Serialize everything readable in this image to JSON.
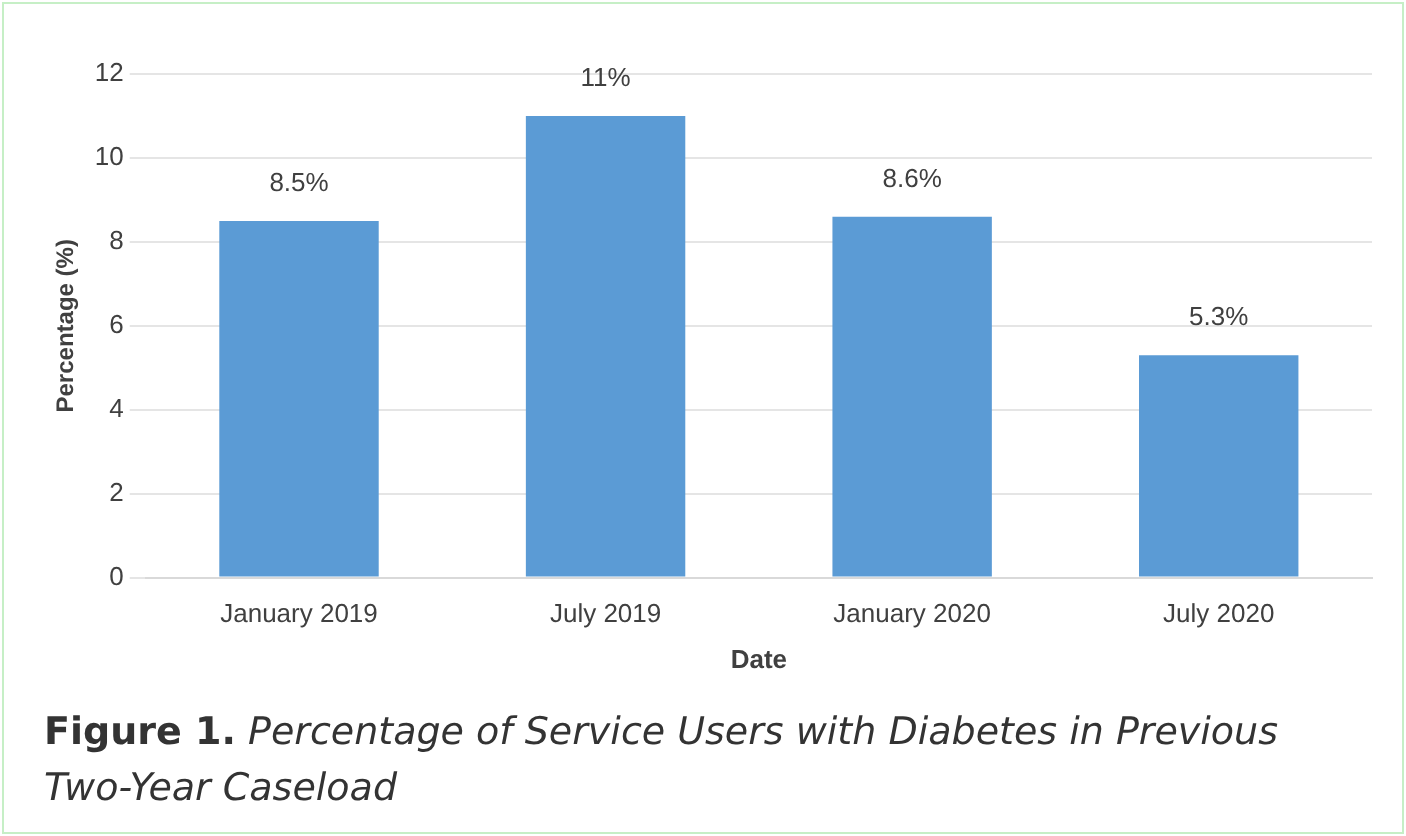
{
  "chart_data": {
    "type": "bar",
    "xlabel": "Date",
    "ylabel": "Percentage (%)",
    "categories": [
      "January 2019",
      "July 2019",
      "January 2020",
      "July 2020"
    ],
    "values": [
      8.5,
      11,
      8.6,
      5.3
    ],
    "value_labels": [
      "8.5%",
      "11%",
      "8.6%",
      "5.3%"
    ],
    "color": "#5b9bd5",
    "ylim": [
      0,
      12
    ],
    "yticks": [
      0,
      2,
      4,
      6,
      8,
      10,
      12
    ],
    "grid": "y",
    "legend": false,
    "annotations": [
      "Figure 1.",
      "Percentage of Service Users with Diabetes in Previous Two-Year Caseload"
    ]
  }
}
